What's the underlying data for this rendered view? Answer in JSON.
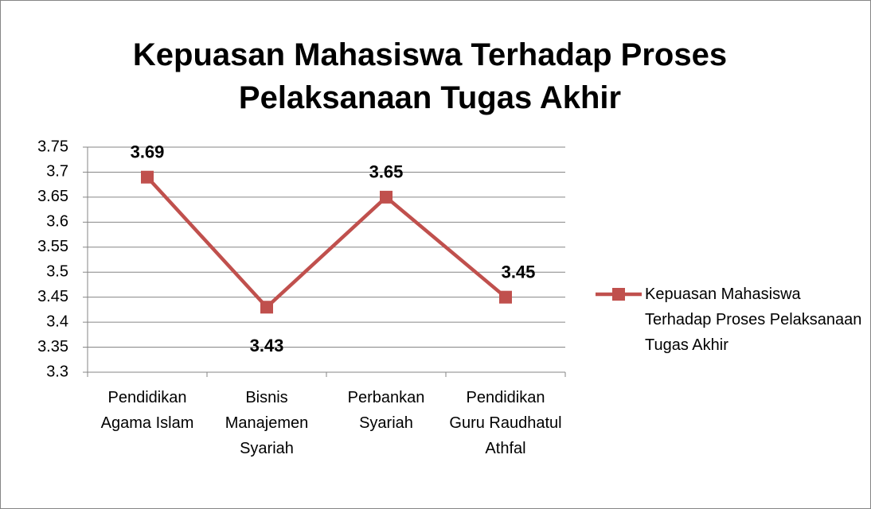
{
  "chart_data": {
    "type": "line",
    "title": "Kepuasan Mahasiswa Terhadap Proses Pelaksanaan Tugas Akhir",
    "categories": [
      "Pendidikan Agama Islam",
      "Bisnis Manajemen Syariah",
      "Perbankan Syariah",
      "Pendidikan Guru Raudhatul Athfal"
    ],
    "series": [
      {
        "name": "Kepuasan Mahasiswa Terhadap Proses Pelaksanaan Tugas Akhir",
        "color": "#c0504d",
        "values": [
          3.69,
          3.43,
          3.65,
          3.45
        ]
      }
    ],
    "ylim": [
      3.3,
      3.75
    ],
    "yticks": [
      3.3,
      3.35,
      3.4,
      3.45,
      3.5,
      3.55,
      3.6,
      3.65,
      3.7,
      3.75
    ],
    "grid": true,
    "legend": "right"
  }
}
